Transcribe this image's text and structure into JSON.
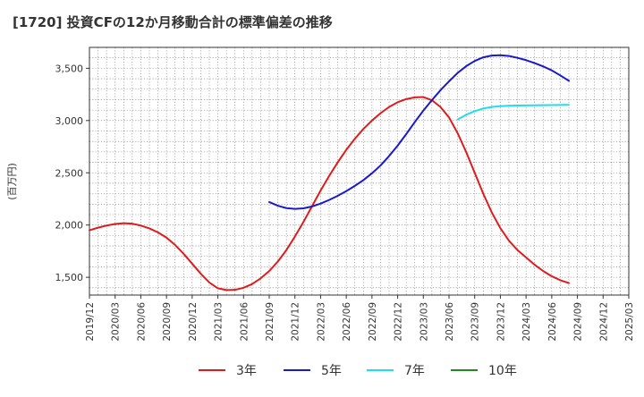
{
  "chart_data": {
    "type": "line",
    "title": "[1720]  投資CFの12か月移動合計の標準偏差の推移",
    "ylabel": "(百万円)",
    "ylim": [
      1330,
      3700
    ],
    "yticks": [
      1500,
      2000,
      2500,
      3000,
      3500
    ],
    "ytick_labels": [
      "1,500",
      "2,000",
      "2,500",
      "3,000",
      "3,500"
    ],
    "xlim": [
      "2019-12",
      "2025-03"
    ],
    "xtick_labels": [
      "2019/12",
      "2020/03",
      "2020/06",
      "2020/09",
      "2020/12",
      "2021/03",
      "2021/06",
      "2021/09",
      "2021/12",
      "2022/03",
      "2022/06",
      "2022/09",
      "2022/12",
      "2023/03",
      "2023/06",
      "2023/09",
      "2023/12",
      "2024/03",
      "2024/06",
      "2024/09",
      "2024/12",
      "2025/03"
    ],
    "grid": true,
    "legend_position": "bottom",
    "series": [
      {
        "name": "3年",
        "color": "#dd1c1c",
        "points": [
          [
            "2019-12",
            1950
          ],
          [
            "2020-01",
            1975
          ],
          [
            "2020-02",
            1995
          ],
          [
            "2020-03",
            2010
          ],
          [
            "2020-04",
            2018
          ],
          [
            "2020-05",
            2013
          ],
          [
            "2020-06",
            1995
          ],
          [
            "2020-07",
            1968
          ],
          [
            "2020-08",
            1930
          ],
          [
            "2020-09",
            1880
          ],
          [
            "2020-10",
            1810
          ],
          [
            "2020-11",
            1725
          ],
          [
            "2020-12",
            1630
          ],
          [
            "2021-01",
            1535
          ],
          [
            "2021-02",
            1450
          ],
          [
            "2021-03",
            1395
          ],
          [
            "2021-04",
            1378
          ],
          [
            "2021-05",
            1380
          ],
          [
            "2021-06",
            1400
          ],
          [
            "2021-07",
            1435
          ],
          [
            "2021-08",
            1490
          ],
          [
            "2021-09",
            1560
          ],
          [
            "2021-10",
            1650
          ],
          [
            "2021-11",
            1760
          ],
          [
            "2021-12",
            1890
          ],
          [
            "2022-01",
            2030
          ],
          [
            "2022-02",
            2180
          ],
          [
            "2022-03",
            2330
          ],
          [
            "2022-04",
            2470
          ],
          [
            "2022-05",
            2600
          ],
          [
            "2022-06",
            2720
          ],
          [
            "2022-07",
            2825
          ],
          [
            "2022-08",
            2920
          ],
          [
            "2022-09",
            3000
          ],
          [
            "2022-10",
            3070
          ],
          [
            "2022-11",
            3130
          ],
          [
            "2022-12",
            3175
          ],
          [
            "2023-01",
            3205
          ],
          [
            "2023-02",
            3222
          ],
          [
            "2023-03",
            3225
          ],
          [
            "2023-04",
            3195
          ],
          [
            "2023-05",
            3130
          ],
          [
            "2023-06",
            3030
          ],
          [
            "2023-07",
            2880
          ],
          [
            "2023-08",
            2700
          ],
          [
            "2023-09",
            2500
          ],
          [
            "2023-10",
            2300
          ],
          [
            "2023-11",
            2120
          ],
          [
            "2023-12",
            1970
          ],
          [
            "2024-01",
            1850
          ],
          [
            "2024-02",
            1760
          ],
          [
            "2024-03",
            1690
          ],
          [
            "2024-04",
            1620
          ],
          [
            "2024-05",
            1560
          ],
          [
            "2024-06",
            1510
          ],
          [
            "2024-07",
            1472
          ],
          [
            "2024-08",
            1445
          ]
        ]
      },
      {
        "name": "5年",
        "color": "#1a1acc",
        "points": [
          [
            "2021-09",
            2220
          ],
          [
            "2021-10",
            2185
          ],
          [
            "2021-11",
            2162
          ],
          [
            "2021-12",
            2155
          ],
          [
            "2022-01",
            2160
          ],
          [
            "2022-02",
            2178
          ],
          [
            "2022-03",
            2205
          ],
          [
            "2022-04",
            2240
          ],
          [
            "2022-05",
            2280
          ],
          [
            "2022-06",
            2325
          ],
          [
            "2022-07",
            2375
          ],
          [
            "2022-08",
            2430
          ],
          [
            "2022-09",
            2495
          ],
          [
            "2022-10",
            2570
          ],
          [
            "2022-11",
            2660
          ],
          [
            "2022-12",
            2760
          ],
          [
            "2023-01",
            2870
          ],
          [
            "2023-02",
            2985
          ],
          [
            "2023-03",
            3095
          ],
          [
            "2023-04",
            3195
          ],
          [
            "2023-05",
            3290
          ],
          [
            "2023-06",
            3375
          ],
          [
            "2023-07",
            3455
          ],
          [
            "2023-08",
            3520
          ],
          [
            "2023-09",
            3570
          ],
          [
            "2023-10",
            3605
          ],
          [
            "2023-11",
            3622
          ],
          [
            "2023-12",
            3625
          ],
          [
            "2024-01",
            3618
          ],
          [
            "2024-02",
            3600
          ],
          [
            "2024-03",
            3578
          ],
          [
            "2024-04",
            3550
          ],
          [
            "2024-05",
            3518
          ],
          [
            "2024-06",
            3480
          ],
          [
            "2024-07",
            3432
          ],
          [
            "2024-08",
            3380
          ]
        ]
      },
      {
        "name": "7年",
        "color": "#22dcec",
        "points": [
          [
            "2023-07",
            3010
          ],
          [
            "2023-08",
            3055
          ],
          [
            "2023-09",
            3090
          ],
          [
            "2023-10",
            3115
          ],
          [
            "2023-11",
            3130
          ],
          [
            "2023-12",
            3138
          ],
          [
            "2024-01",
            3142
          ],
          [
            "2024-02",
            3144
          ],
          [
            "2024-03",
            3145
          ],
          [
            "2024-04",
            3146
          ],
          [
            "2024-05",
            3147
          ],
          [
            "2024-06",
            3148
          ],
          [
            "2024-07",
            3149
          ],
          [
            "2024-08",
            3150
          ]
        ]
      },
      {
        "name": "10年",
        "color": "#228822",
        "points": []
      }
    ]
  }
}
